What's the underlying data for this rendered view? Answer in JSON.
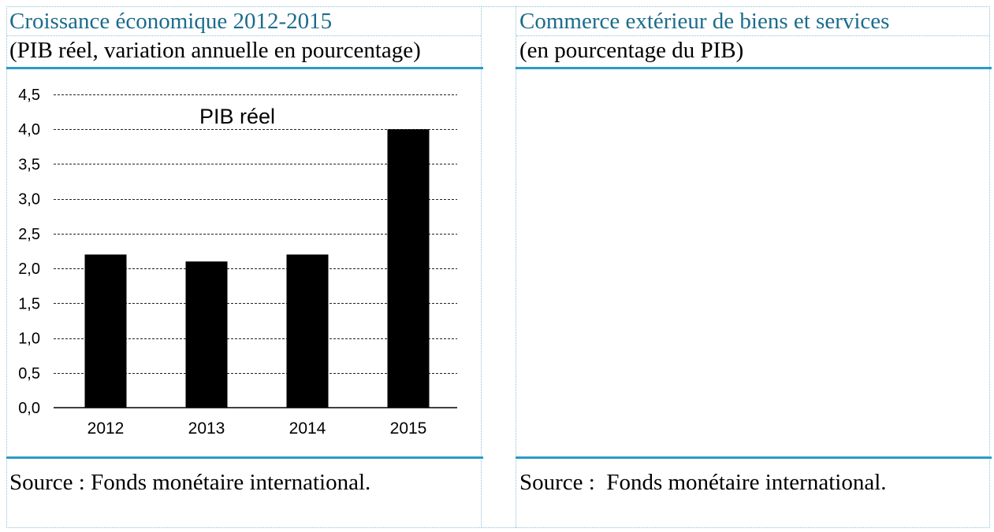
{
  "colors": {
    "panel_title": "#1B6C8C",
    "rule": "#2B9BC7",
    "frame": "#8CC2D8",
    "bar": "#000000",
    "gridline": "#222222"
  },
  "left_panel": {
    "title": "Croissance économique 2012-2015",
    "subtitle": "(PIB réel, variation annuelle en pourcentage)",
    "source": "Source : Fonds monétaire international."
  },
  "right_panel": {
    "title": "Commerce extérieur de biens et services",
    "subtitle": "(en pourcentage du PIB)",
    "source": "Source :  Fonds monétaire international."
  },
  "chart_data": {
    "type": "bar",
    "categories": [
      "2012",
      "2013",
      "2014",
      "2015"
    ],
    "series": [
      {
        "name": "PIB réel",
        "values": [
          2.2,
          2.1,
          2.2,
          4.0
        ]
      }
    ],
    "ylim": [
      0,
      4.5
    ],
    "yticks": [
      0,
      0.5,
      1,
      1.5,
      2,
      2.5,
      3,
      3.5,
      4,
      4.5
    ],
    "ytick_labels": [
      "0,0",
      "0,5",
      "1,0",
      "1,5",
      "2,0",
      "2,5",
      "3,0",
      "3,5",
      "4,0",
      "4,5"
    ],
    "xlabel": "",
    "ylabel": "",
    "grid": true,
    "legend": "inside-top"
  }
}
